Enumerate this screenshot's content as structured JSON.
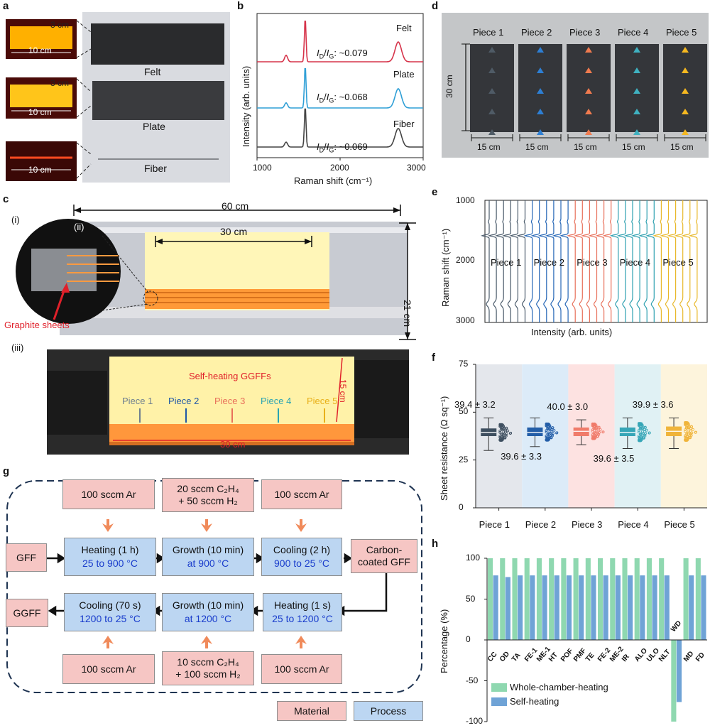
{
  "panels": {
    "a": "a",
    "b": "b",
    "c": "c",
    "d": "d",
    "e": "e",
    "f": "f",
    "g": "g",
    "h": "h"
  },
  "panel_a": {
    "felt": {
      "label": "Felt",
      "dim_height": "3 cm",
      "dim_width": "10 cm"
    },
    "plate": {
      "label": "Plate",
      "dim_height": "3 cm",
      "dim_width": "10 cm"
    },
    "fiber": {
      "label": "Fiber",
      "dim_width": "10 cm"
    }
  },
  "panel_b": {
    "chart_data": {
      "type": "line",
      "xlabel": "Raman shift (cm⁻¹)",
      "ylabel": "Intensity (arb. units)",
      "xlim": [
        1000,
        3000
      ],
      "x_ticks": [
        "1000",
        "2000",
        "3000"
      ],
      "series": [
        {
          "name": "Felt",
          "ratio_label": "I",
          "ratio_text": ": ~0.079",
          "ratio": 0.079,
          "color": "#d6334a",
          "peaks": [
            {
              "x": 1350,
              "h": 0.15
            },
            {
              "x": 1580,
              "h": 1.0
            },
            {
              "x": 2700,
              "h": 0.45
            }
          ]
        },
        {
          "name": "Plate",
          "ratio_label": "I",
          "ratio_text": ": ~0.068",
          "ratio": 0.068,
          "color": "#2f9fd6",
          "peaks": [
            {
              "x": 1350,
              "h": 0.12
            },
            {
              "x": 1580,
              "h": 1.0
            },
            {
              "x": 2700,
              "h": 0.45
            }
          ]
        },
        {
          "name": "Fiber",
          "ratio_label": "I",
          "ratio_text": ": ~0.069",
          "ratio": 0.069,
          "color": "#444444",
          "peaks": [
            {
              "x": 1350,
              "h": 0.12
            },
            {
              "x": 1580,
              "h": 1.0
            },
            {
              "x": 2700,
              "h": 0.45
            }
          ]
        }
      ]
    }
  },
  "panel_c": {
    "i": "(i)",
    "ii": "(ii)",
    "iii": "(iii)",
    "dim_60": "60 cm",
    "dim_30": "30 cm",
    "dim_21": "21 cm",
    "graphite": "Graphite sheets",
    "ggffs": "Self-heating GGFFs",
    "pieces": [
      {
        "label": "Piece 1",
        "color": "#6f7f8f"
      },
      {
        "label": "Piece 2",
        "color": "#2057a7"
      },
      {
        "label": "Piece 3",
        "color": "#e8705a"
      },
      {
        "label": "Piece 4",
        "color": "#2aa3b3"
      },
      {
        "label": "Piece 5",
        "color": "#e8b01a"
      }
    ],
    "dim_bottom": "30 cm",
    "dim_side": "15 cm"
  },
  "panel_d": {
    "dim_height": "30 cm",
    "pieces": [
      {
        "label": "Piece 1",
        "width": "15 cm",
        "color": "#4f5b66"
      },
      {
        "label": "Piece 2",
        "width": "15 cm",
        "color": "#2d7fd4"
      },
      {
        "label": "Piece 3",
        "width": "15 cm",
        "color": "#f07b4f"
      },
      {
        "label": "Piece 4",
        "width": "15 cm",
        "color": "#3fb1c0"
      },
      {
        "label": "Piece 5",
        "width": "15 cm",
        "color": "#f5b820"
      }
    ]
  },
  "panel_e": {
    "chart_data": {
      "type": "line",
      "ylabel": "Raman shift (cm⁻¹)",
      "xlabel": "Intensity (arb. units)",
      "ylim": [
        1000,
        3000
      ],
      "y_ticks": [
        "1000",
        "2000",
        "3000"
      ],
      "series": [
        {
          "name": "Piece 1",
          "color": "#4a5a6a",
          "count": 6
        },
        {
          "name": "Piece 2",
          "color": "#2566b6",
          "count": 6
        },
        {
          "name": "Piece 3",
          "color": "#e8705a",
          "count": 6
        },
        {
          "name": "Piece 4",
          "color": "#2ea0b0",
          "count": 6
        },
        {
          "name": "Piece 5",
          "color": "#e8b82a",
          "count": 6
        }
      ]
    }
  },
  "panel_f": {
    "chart_data": {
      "type": "box",
      "ylabel": "Sheet resistance (Ω sq⁻¹)",
      "ylim": [
        0,
        75
      ],
      "y_ticks": [
        "0",
        "25",
        "50",
        "75"
      ],
      "categories": [
        "Piece 1",
        "Piece 2",
        "Piece 3",
        "Piece 4",
        "Piece 5"
      ],
      "series": [
        {
          "name": "Piece 1",
          "mean": 39.4,
          "sd": 3.2,
          "label": "39.4 ± 3.2",
          "q1": 37.5,
          "median": 39.5,
          "q3": 41.5,
          "min": 30,
          "max": 47,
          "color": "#3e4f60",
          "bg": "#e4e7ec",
          "label_pos": "above"
        },
        {
          "name": "Piece 2",
          "mean": 39.6,
          "sd": 3.3,
          "label": "39.6 ± 3.3",
          "q1": 37.5,
          "median": 39.5,
          "q3": 42,
          "min": 32,
          "max": 47,
          "color": "#235ea8",
          "bg": "#dcebf8",
          "label_pos": "below"
        },
        {
          "name": "Piece 3",
          "mean": 40.0,
          "sd": 3.0,
          "label": "40.0 ± 3.0",
          "q1": 37.5,
          "median": 40,
          "q3": 42,
          "min": 33,
          "max": 46,
          "color": "#f07b6a",
          "bg": "#fde2e1",
          "label_pos": "above"
        },
        {
          "name": "Piece 4",
          "mean": 39.6,
          "sd": 3.5,
          "label": "39.6 ± 3.5",
          "q1": 37.5,
          "median": 39.5,
          "q3": 42,
          "min": 31,
          "max": 47,
          "color": "#36a6b7",
          "bg": "#e0f1f4",
          "label_pos": "below"
        },
        {
          "name": "Piece 5",
          "mean": 39.9,
          "sd": 3.6,
          "label": "39.9 ± 3.6",
          "q1": 37.5,
          "median": 40,
          "q3": 42.5,
          "min": 31,
          "max": 47,
          "color": "#f0b43a",
          "bg": "#fdf4dc",
          "label_pos": "above"
        }
      ]
    }
  },
  "panel_g": {
    "gff": "GFF",
    "ggff": "GGFF",
    "carbon_coated": "Carbon-coated GFF",
    "top_inputs": [
      {
        "line1": "100 sccm Ar",
        "line2": ""
      },
      {
        "line1": "20 sccm C₂H₄",
        "line2": "+ 50 sccm H₂"
      },
      {
        "line1": "100 sccm Ar",
        "line2": ""
      }
    ],
    "top_steps": [
      {
        "name": "Heating (1 h)",
        "cond": "25 to 900 °C"
      },
      {
        "name": "Growth (10 min)",
        "cond": "at 900 °C"
      },
      {
        "name": "Cooling (2 h)",
        "cond": "900 to 25 °C"
      }
    ],
    "bottom_steps": [
      {
        "name": "Cooling (70 s)",
        "cond": "1200 to 25 °C"
      },
      {
        "name": "Growth (10 min)",
        "cond": "at 1200 °C"
      },
      {
        "name": "Heating (1 s)",
        "cond": "25 to 1200 °C"
      }
    ],
    "bottom_inputs": [
      {
        "line1": "100 sccm Ar",
        "line2": ""
      },
      {
        "line1": "10 sccm C₂H₄",
        "line2": "+ 100 sccm H₂"
      },
      {
        "line1": "100 sccm Ar",
        "line2": ""
      }
    ],
    "legend_material": "Material",
    "legend_process": "Process"
  },
  "panel_h": {
    "chart_data": {
      "type": "bar",
      "ylabel": "Percentage (%)",
      "ylim": [
        -100,
        100
      ],
      "y_ticks": [
        "100",
        "50",
        "0",
        "-50",
        "-100"
      ],
      "categories": [
        "CC",
        "OD",
        "TA",
        "FE-1",
        "ME-1",
        "HT",
        "POF",
        "PMF",
        "TE",
        "FE-2",
        "ME-2",
        "IR",
        "ALO",
        "ULO",
        "NLT",
        "WD",
        "MD",
        "FD"
      ],
      "series": [
        {
          "name": "Whole-chamber-heating",
          "color": "#8fd8b0",
          "values": [
            100,
            100,
            100,
            100,
            100,
            100,
            100,
            100,
            100,
            100,
            100,
            100,
            100,
            100,
            100,
            -100,
            100,
            100
          ]
        },
        {
          "name": "Self-heating",
          "color": "#6fa3d6",
          "values": [
            79,
            77,
            79,
            79,
            79,
            79,
            79,
            79,
            79,
            79,
            79,
            79,
            79,
            79,
            79,
            -76,
            79,
            79
          ]
        }
      ],
      "legend": "bottom-left"
    }
  }
}
